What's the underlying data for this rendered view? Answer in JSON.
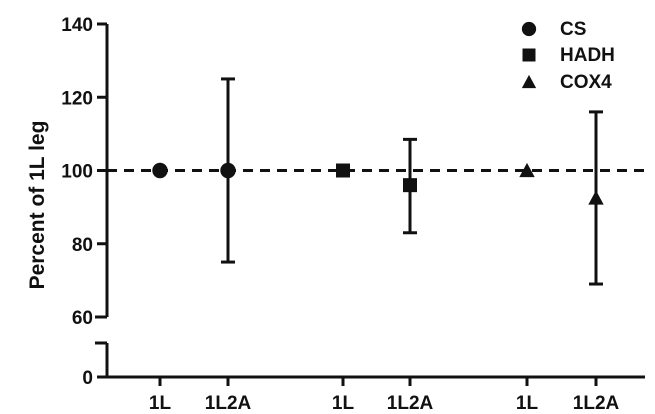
{
  "chart_data": {
    "type": "scatter",
    "title": "",
    "ylabel": "Percent of 1L leg",
    "xlabel": "",
    "y_axis_broken": true,
    "y_break": [
      0,
      60
    ],
    "ylim": [
      0,
      140
    ],
    "y_ticks": [
      "0",
      "60",
      "80",
      "100",
      "120",
      "140"
    ],
    "x_tick_labels": [
      "1L",
      "1L2A",
      "1L",
      "1L2A",
      "1L",
      "1L2A"
    ],
    "reference_line": {
      "y": 100,
      "style": "dashed"
    },
    "series": [
      {
        "name": "CS",
        "marker": "circle",
        "points": [
          {
            "x": "1L",
            "y": 100,
            "err_low": 100,
            "err_high": 100
          },
          {
            "x": "1L2A",
            "y": 100,
            "err_low": 75,
            "err_high": 125
          }
        ]
      },
      {
        "name": "HADH",
        "marker": "square",
        "points": [
          {
            "x": "1L",
            "y": 100,
            "err_low": 100,
            "err_high": 100
          },
          {
            "x": "1L2A",
            "y": 96,
            "err_low": 83,
            "err_high": 108.5
          }
        ]
      },
      {
        "name": "COX4",
        "marker": "triangle",
        "points": [
          {
            "x": "1L",
            "y": 100,
            "err_low": 100,
            "err_high": 100
          },
          {
            "x": "1L2A",
            "y": 92.5,
            "err_low": 69,
            "err_high": 116
          }
        ]
      }
    ],
    "legend": {
      "position": "top-right",
      "entries": [
        "CS",
        "HADH",
        "COX4"
      ]
    },
    "grid": false,
    "colors": {
      "ink": "#111111",
      "background": "#ffffff"
    }
  }
}
